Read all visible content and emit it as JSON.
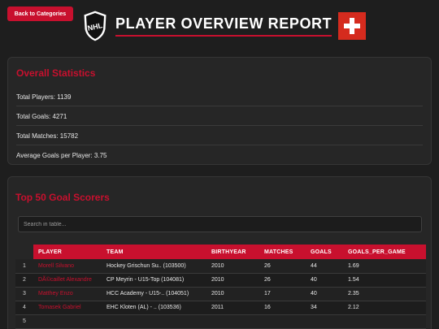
{
  "back_button": "Back to Categories",
  "title": "PLAYER OVERVIEW REPORT",
  "logo": "nhl-logo",
  "flag": "swiss-flag",
  "colors": {
    "accent": "#c8102e",
    "background": "#1e1e1e",
    "card": "#262626"
  },
  "overall": {
    "title": "Overall Statistics",
    "rows": [
      "Total Players: 1139",
      "Total Goals: 4271",
      "Total Matches: 15782",
      "Average Goals per Player: 3.75"
    ]
  },
  "top": {
    "title": "Top 50 Goal Scorers",
    "search_placeholder": "Search in table...",
    "columns": [
      "",
      "PLAYER",
      "TEAM",
      "BIRTHYEAR",
      "MATCHES",
      "GOALS",
      "GOALS_PER_GAME"
    ],
    "rows": [
      [
        "1",
        "Morell Silvano",
        "Hockey Grischun Su.. (103500)",
        "2010",
        "26",
        "44",
        "1.69"
      ],
      [
        "2",
        "DÃ©caillet Alexandre",
        "CP Meyrin - U15-Top (104081)",
        "2010",
        "26",
        "40",
        "1.54"
      ],
      [
        "3",
        "Matthey Enzo",
        "HCC Academy - U15-.. (104051)",
        "2010",
        "17",
        "40",
        "2.35"
      ],
      [
        "4",
        "Tomasek Gabriel",
        "EHC Kloten (AL) - .. (103536)",
        "2011",
        "16",
        "34",
        "2.12"
      ],
      [
        "5",
        "",
        "",
        "",
        "",
        "",
        ""
      ]
    ]
  }
}
